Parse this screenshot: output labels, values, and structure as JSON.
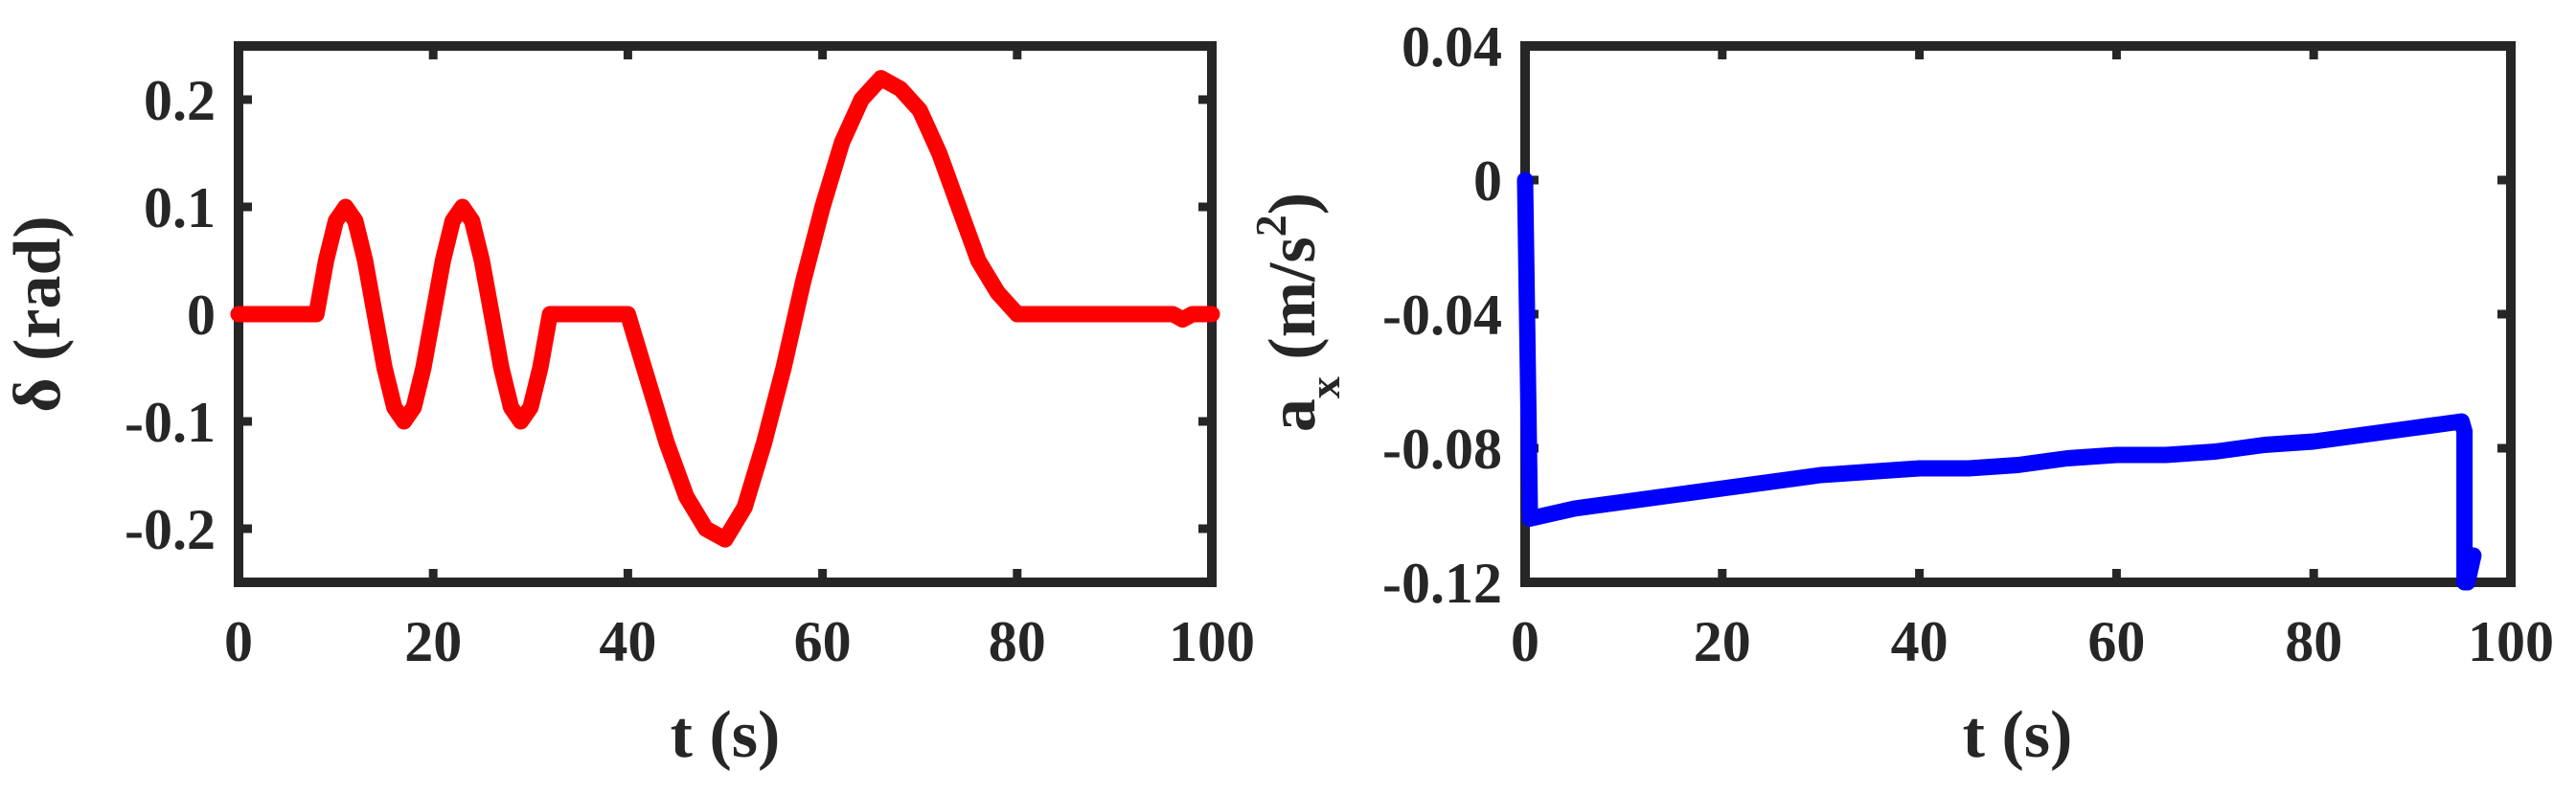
{
  "chart_data": [
    {
      "type": "line",
      "xlabel": "t (s)",
      "ylabel": "δ (rad)",
      "xlim": [
        0,
        100
      ],
      "ylim": [
        -0.25,
        0.25
      ],
      "xticks": [
        0,
        20,
        40,
        60,
        80,
        100
      ],
      "xtick_labels": [
        "0",
        "20",
        "40",
        "60",
        "80",
        "100"
      ],
      "yticks": [
        -0.2,
        -0.1,
        0,
        0.1,
        0.2
      ],
      "ytick_labels": [
        "-0.2",
        "-0.1",
        "0",
        "0.1",
        "0.2"
      ],
      "grid": false,
      "color": "#ff0000",
      "series": [
        {
          "x": [
            0,
            8,
            9,
            10,
            11,
            12,
            13,
            14,
            15,
            16,
            17,
            18,
            19,
            20,
            21,
            22,
            23,
            24,
            25,
            26,
            27,
            28,
            29,
            30,
            31,
            32,
            40,
            42,
            44,
            46,
            48,
            50,
            52,
            54,
            56,
            58,
            60,
            62,
            64,
            66,
            68,
            70,
            72,
            74,
            76,
            78,
            80,
            95,
            96,
            97,
            98,
            100
          ],
          "y": [
            0,
            0,
            0.05,
            0.087,
            0.1,
            0.087,
            0.05,
            0,
            -0.05,
            -0.087,
            -0.1,
            -0.087,
            -0.05,
            0,
            0.05,
            0.087,
            0.1,
            0.087,
            0.05,
            0,
            -0.05,
            -0.087,
            -0.1,
            -0.087,
            -0.05,
            0,
            0,
            -0.06,
            -0.12,
            -0.17,
            -0.2,
            -0.21,
            -0.18,
            -0.12,
            -0.05,
            0.03,
            0.1,
            0.16,
            0.2,
            0.22,
            0.21,
            0.19,
            0.15,
            0.1,
            0.05,
            0.02,
            0,
            0,
            0,
            -0.005,
            0,
            0
          ]
        }
      ]
    },
    {
      "type": "line",
      "xlabel": "t (s)",
      "ylabel_main": "a",
      "ylabel_subscript": "x",
      "ylabel_unit": " (m/s",
      "ylabel_superscript": "2",
      "ylabel_close": ")",
      "xlim": [
        0,
        100
      ],
      "ylim": [
        -0.12,
        0.04
      ],
      "xticks": [
        0,
        20,
        40,
        60,
        80,
        100
      ],
      "xtick_labels": [
        "0",
        "20",
        "40",
        "60",
        "80",
        "100"
      ],
      "yticks": [
        -0.12,
        -0.08,
        -0.04,
        0,
        0.04
      ],
      "ytick_labels": [
        "-0.12",
        "-0.08",
        "-0.04",
        "0",
        "0.04"
      ],
      "grid": false,
      "color": "#0000ff",
      "series": [
        {
          "x": [
            0,
            0.5,
            5,
            10,
            15,
            20,
            25,
            30,
            35,
            40,
            45,
            50,
            55,
            60,
            65,
            70,
            75,
            80,
            85,
            90,
            95,
            95.3,
            95.3,
            95.6,
            96.2
          ],
          "y": [
            0,
            -0.101,
            -0.098,
            -0.096,
            -0.094,
            -0.092,
            -0.09,
            -0.088,
            -0.087,
            -0.086,
            -0.086,
            -0.085,
            -0.083,
            -0.082,
            -0.082,
            -0.081,
            -0.079,
            -0.078,
            -0.076,
            -0.074,
            -0.072,
            -0.075,
            -0.12,
            -0.12,
            -0.112
          ]
        }
      ]
    }
  ]
}
